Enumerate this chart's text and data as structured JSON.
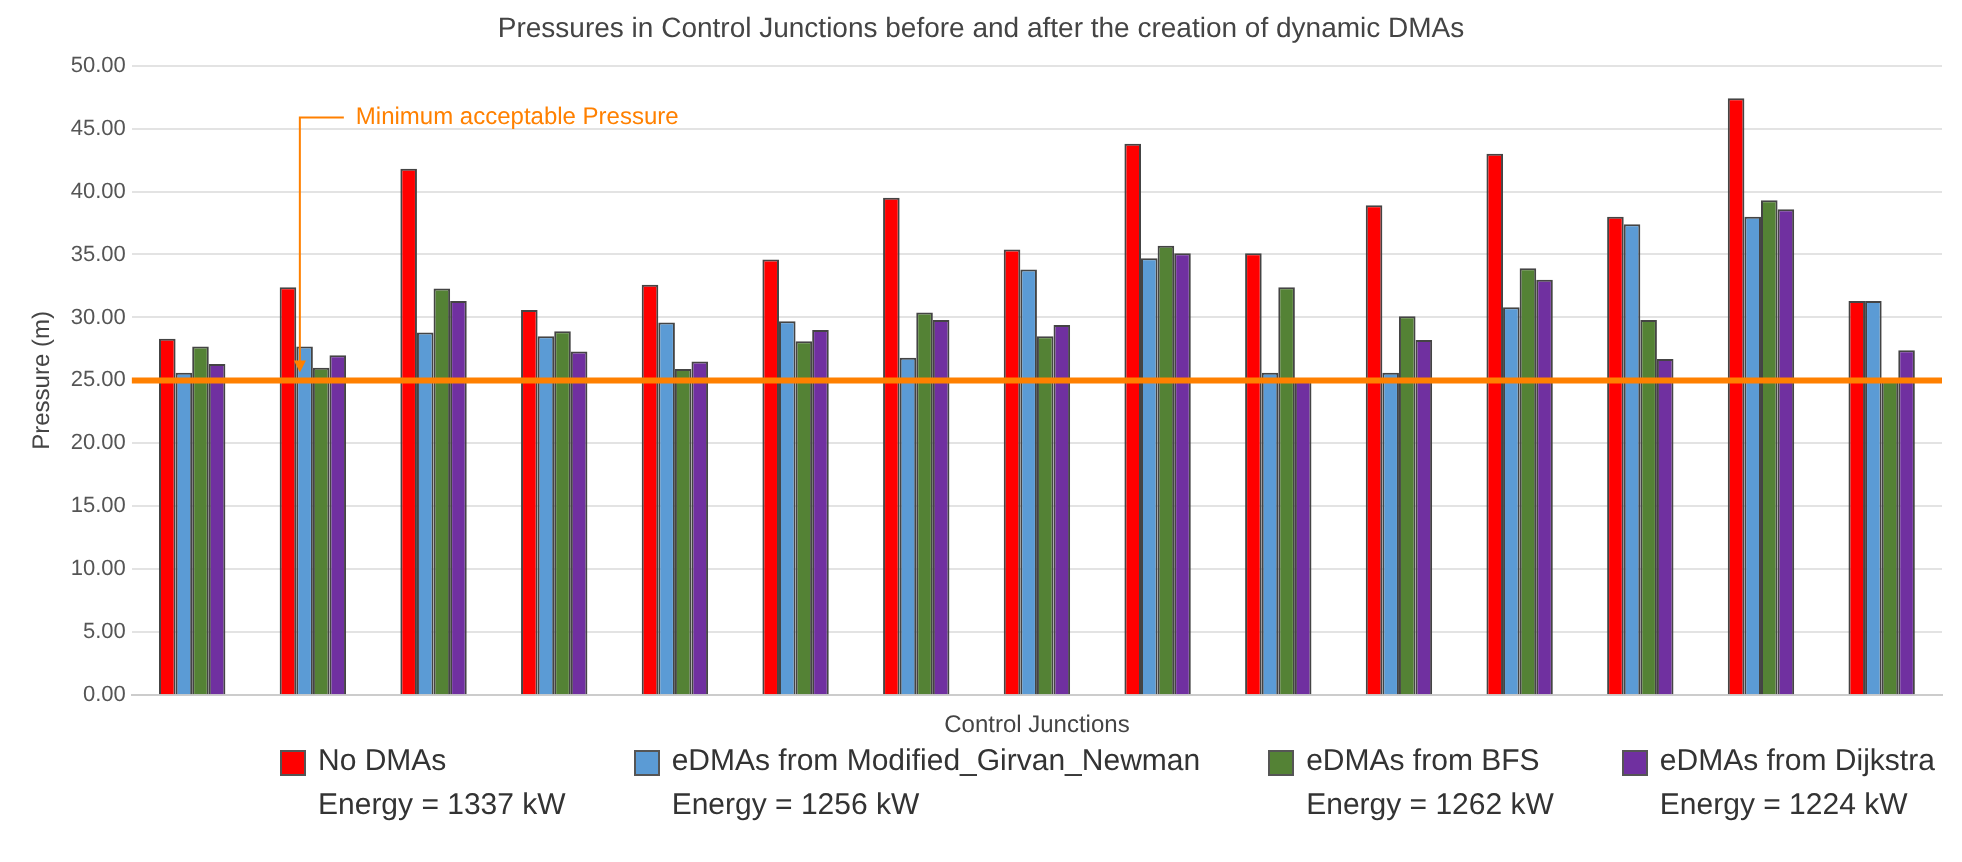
{
  "chart_data": {
    "type": "bar",
    "title": "Pressures in Control Junctions before and after the creation of dynamic DMAs",
    "xlabel": "Control Junctions",
    "ylabel": "Pressure (m)",
    "categories": [
      null,
      null,
      null,
      null,
      null,
      null,
      null,
      null,
      null,
      null,
      null,
      null,
      null,
      null,
      null
    ],
    "series": [
      {
        "name": "No DMAs\nEnergy = 1337 kW",
        "color": "#ff0000",
        "values": [
          28.3,
          32.4,
          41.8,
          30.6,
          32.6,
          34.6,
          39.5,
          35.4,
          43.8,
          35.1,
          38.9,
          43.0,
          38.0,
          47.4,
          31.3
        ]
      },
      {
        "name": "eDMAs from Modified_Girvan_Newman\nEnergy = 1256 kW",
        "color": "#5b9bd5",
        "values": [
          25.6,
          27.7,
          28.8,
          28.5,
          29.6,
          29.7,
          26.8,
          33.8,
          34.7,
          25.6,
          25.6,
          30.8,
          37.4,
          38.0,
          31.3
        ]
      },
      {
        "name": "eDMAs from BFS\nEnergy = 1262 kW",
        "color": "#548235",
        "values": [
          27.7,
          26.0,
          32.3,
          28.9,
          25.9,
          28.1,
          30.4,
          28.5,
          35.7,
          32.4,
          30.1,
          33.9,
          29.8,
          39.3,
          25.0
        ]
      },
      {
        "name": "eDMAs from Dijkstra\nEnergy = 1224 kW",
        "color": "#7030a0",
        "values": [
          26.3,
          27.0,
          31.3,
          27.3,
          26.5,
          29.0,
          29.8,
          29.4,
          35.1,
          25.0,
          28.2,
          33.0,
          26.7,
          38.6,
          27.4
        ]
      }
    ],
    "ylim": [
      0,
      50
    ],
    "yticks": [
      {
        "value": 0,
        "label": "0.00"
      },
      {
        "value": 5,
        "label": "5.00"
      },
      {
        "value": 10,
        "label": "10.00"
      },
      {
        "value": 15,
        "label": "15.00"
      },
      {
        "value": 20,
        "label": "20.00"
      },
      {
        "value": 25,
        "label": "25.00"
      },
      {
        "value": 30,
        "label": "30.00"
      },
      {
        "value": 35,
        "label": "35.00"
      },
      {
        "value": 40,
        "label": "40.00"
      },
      {
        "value": 45,
        "label": "45.00"
      },
      {
        "value": 50,
        "label": "50.00"
      }
    ],
    "ref_lines": [
      {
        "axis": "y",
        "value": 25,
        "label": "Minimum acceptable Pressure",
        "color": "#ff8000"
      }
    ],
    "grid": "y",
    "legend": "bottom"
  }
}
